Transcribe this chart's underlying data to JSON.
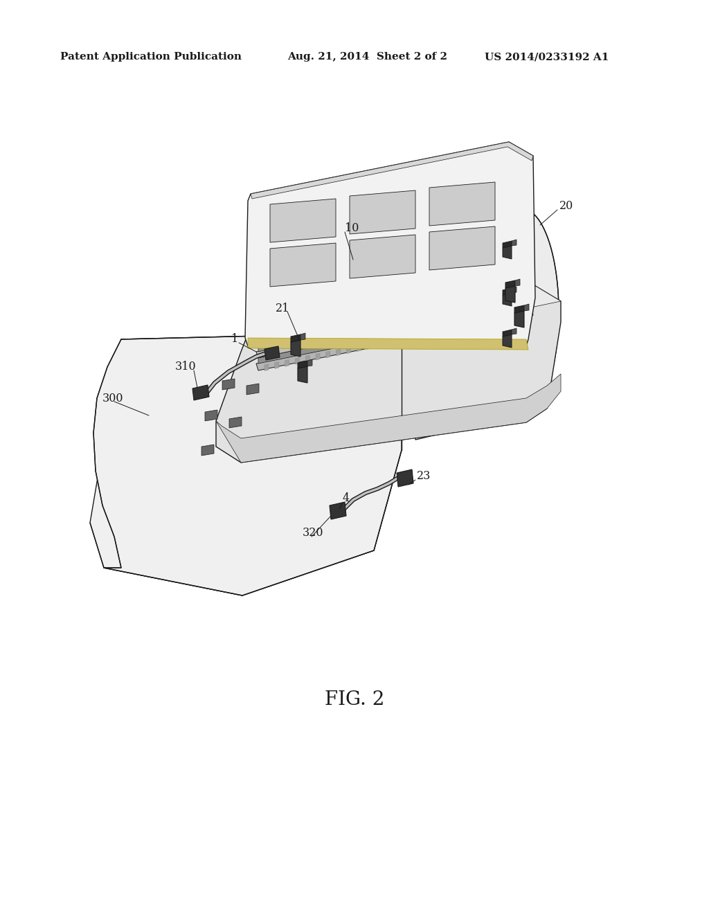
{
  "background_color": "#ffffff",
  "header_left": "Patent Application Publication",
  "header_center": "Aug. 21, 2014  Sheet 2 of 2",
  "header_right": "US 2014/0233192 A1",
  "header_fontsize": 11,
  "fig_label": "FIG. 2",
  "fig_label_fontsize": 20,
  "line_color": "#1a1a1a",
  "fill_board": "#f0f0f0",
  "fill_platform": "#e0e0e0",
  "fill_rail": "#c8c8c8",
  "fill_ram": "#f5f5f5",
  "fill_chip": "#d0d0d0",
  "fill_dark": "#444444",
  "fill_medium": "#888888"
}
